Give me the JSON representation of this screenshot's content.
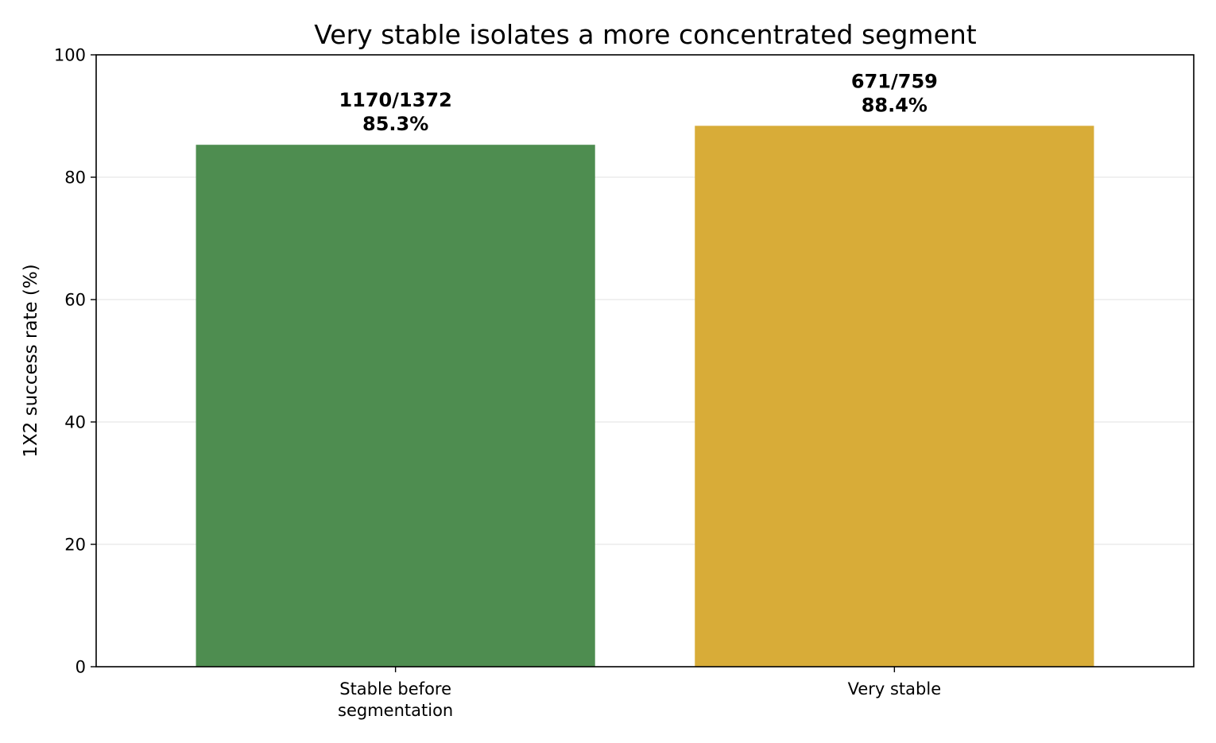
{
  "chart_data": {
    "type": "bar",
    "title": "Very stable isolates a more concentrated segment",
    "xlabel": "",
    "ylabel": "1X2 success rate (%)",
    "ylim": [
      0,
      100
    ],
    "yticks": [
      "0",
      "20",
      "40",
      "60",
      "80",
      "100"
    ],
    "grid": "horizontal",
    "categories": [
      [
        "Stable before",
        "segmentation"
      ],
      [
        "Very stable"
      ]
    ],
    "values": [
      85.3,
      88.4
    ],
    "data_labels": [
      [
        "1170/1372",
        "85.3%"
      ],
      [
        "671/759",
        "88.4%"
      ]
    ],
    "colors": [
      "#4e8d50",
      "#d8ac38"
    ]
  }
}
